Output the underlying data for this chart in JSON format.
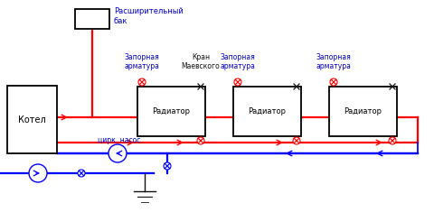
{
  "bg_color": "#ffffff",
  "red": "#ff0000",
  "blue": "#0000ff",
  "dark": "#111111",
  "label_color": "#0000cc",
  "expansion_tank_label": "Расширительный\nбак",
  "boiler_label": "Котел",
  "radiator_label": "Радиатор",
  "pump_label": "цирк. насос",
  "zapornaya": "Запорная\nарматура",
  "maevsky": "Кран\nМаевского",
  "font_size": 6.0
}
